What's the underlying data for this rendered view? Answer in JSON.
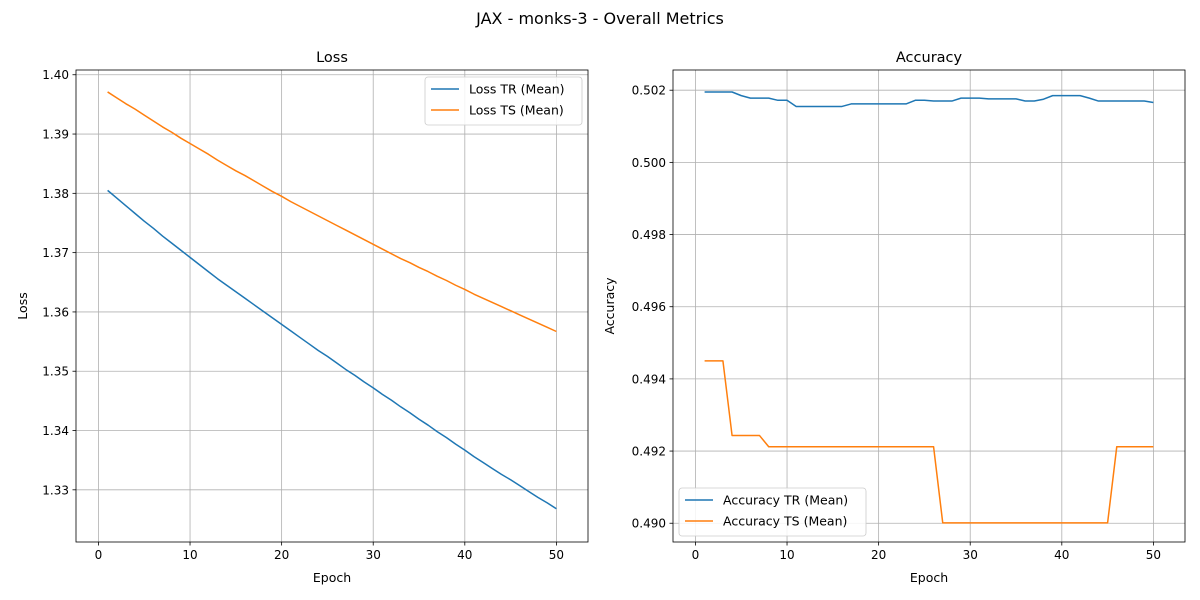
{
  "figure": {
    "suptitle": "JAX - monks-3 - Overall Metrics"
  },
  "colors": {
    "tr": "#1f77b4",
    "ts": "#ff7f0e",
    "grid": "#b0b0b0"
  },
  "chart_data": [
    {
      "type": "line",
      "title": "Loss",
      "xlabel": "Epoch",
      "ylabel": "Loss",
      "xlim": [
        -2.45,
        53.45
      ],
      "ylim": [
        1.3212,
        1.4008
      ],
      "xticks": [
        0,
        10,
        20,
        30,
        40,
        50
      ],
      "yticks": [
        1.33,
        1.34,
        1.35,
        1.36,
        1.37,
        1.38,
        1.39,
        1.4
      ],
      "ytick_labels": [
        "1.33",
        "1.34",
        "1.35",
        "1.36",
        "1.37",
        "1.38",
        "1.39",
        "1.40"
      ],
      "grid": true,
      "legend": "top-right",
      "series": [
        {
          "name": "Loss TR (Mean)",
          "color": "#1f77b4",
          "x": [
            1,
            2,
            3,
            4,
            5,
            6,
            7,
            8,
            9,
            10,
            11,
            12,
            13,
            14,
            15,
            16,
            17,
            18,
            19,
            20,
            21,
            22,
            23,
            24,
            25,
            26,
            27,
            28,
            29,
            30,
            31,
            32,
            33,
            34,
            35,
            36,
            37,
            38,
            39,
            40,
            41,
            42,
            43,
            44,
            45,
            46,
            47,
            48,
            49,
            50
          ],
          "y": [
            1.3805,
            1.3792,
            1.3779,
            1.3766,
            1.3753,
            1.3741,
            1.3728,
            1.3716,
            1.3704,
            1.3692,
            1.368,
            1.3668,
            1.3656,
            1.3645,
            1.3634,
            1.3623,
            1.3612,
            1.3601,
            1.359,
            1.3579,
            1.3568,
            1.3557,
            1.3546,
            1.3535,
            1.3525,
            1.3514,
            1.3503,
            1.3493,
            1.3482,
            1.3472,
            1.3461,
            1.3451,
            1.344,
            1.343,
            1.3419,
            1.3409,
            1.3398,
            1.3388,
            1.3377,
            1.3367,
            1.3356,
            1.3346,
            1.3336,
            1.3326,
            1.3317,
            1.3307,
            1.3297,
            1.3287,
            1.3278,
            1.3268
          ]
        },
        {
          "name": "Loss TS (Mean)",
          "color": "#ff7f0e",
          "x": [
            1,
            2,
            3,
            4,
            5,
            6,
            7,
            8,
            9,
            10,
            11,
            12,
            13,
            14,
            15,
            16,
            17,
            18,
            19,
            20,
            21,
            22,
            23,
            24,
            25,
            26,
            27,
            28,
            29,
            30,
            31,
            32,
            33,
            34,
            35,
            36,
            37,
            38,
            39,
            40,
            41,
            42,
            43,
            44,
            45,
            46,
            47,
            48,
            49,
            50
          ],
          "y": [
            1.3971,
            1.3961,
            1.3951,
            1.3942,
            1.3932,
            1.3922,
            1.3912,
            1.3903,
            1.3893,
            1.3884,
            1.3875,
            1.3866,
            1.3856,
            1.3847,
            1.3838,
            1.383,
            1.3821,
            1.3812,
            1.3803,
            1.3795,
            1.3786,
            1.3778,
            1.377,
            1.3762,
            1.3754,
            1.3746,
            1.3738,
            1.373,
            1.3722,
            1.3714,
            1.3706,
            1.3698,
            1.369,
            1.3683,
            1.3675,
            1.3668,
            1.366,
            1.3653,
            1.3645,
            1.3638,
            1.363,
            1.3623,
            1.3616,
            1.3609,
            1.3602,
            1.3595,
            1.3588,
            1.3581,
            1.3574,
            1.3567
          ]
        }
      ]
    },
    {
      "type": "line",
      "title": "Accuracy",
      "xlabel": "Epoch",
      "ylabel": "Accuracy",
      "xlim": [
        -2.45,
        53.45
      ],
      "ylim": [
        0.48948,
        0.50256
      ],
      "xticks": [
        0,
        10,
        20,
        30,
        40,
        50
      ],
      "yticks": [
        0.49,
        0.492,
        0.494,
        0.496,
        0.498,
        0.5,
        0.502
      ],
      "ytick_labels": [
        "0.490",
        "0.492",
        "0.494",
        "0.496",
        "0.498",
        "0.500",
        "0.502"
      ],
      "grid": true,
      "legend": "bottom-left",
      "series": [
        {
          "name": "Accuracy TR (Mean)",
          "color": "#1f77b4",
          "x": [
            1,
            2,
            3,
            4,
            5,
            6,
            7,
            8,
            9,
            10,
            11,
            12,
            13,
            14,
            15,
            16,
            17,
            18,
            19,
            20,
            21,
            22,
            23,
            24,
            25,
            26,
            27,
            28,
            29,
            30,
            31,
            32,
            33,
            34,
            35,
            36,
            37,
            38,
            39,
            40,
            41,
            42,
            43,
            44,
            45,
            46,
            47,
            48,
            49,
            50
          ],
          "y": [
            0.50195,
            0.50195,
            0.50195,
            0.50195,
            0.50185,
            0.50178,
            0.50178,
            0.50178,
            0.50172,
            0.50172,
            0.50155,
            0.50155,
            0.50155,
            0.50155,
            0.50155,
            0.50155,
            0.50162,
            0.50162,
            0.50162,
            0.50162,
            0.50162,
            0.50162,
            0.50162,
            0.50172,
            0.50172,
            0.5017,
            0.5017,
            0.5017,
            0.50178,
            0.50178,
            0.50178,
            0.50176,
            0.50176,
            0.50176,
            0.50176,
            0.5017,
            0.5017,
            0.50175,
            0.50185,
            0.50185,
            0.50185,
            0.50185,
            0.50178,
            0.5017,
            0.5017,
            0.5017,
            0.5017,
            0.5017,
            0.5017,
            0.50166
          ]
        },
        {
          "name": "Accuracy TS (Mean)",
          "color": "#ff7f0e",
          "x": [
            1,
            2,
            3,
            4,
            5,
            6,
            7,
            8,
            9,
            10,
            11,
            12,
            13,
            14,
            15,
            16,
            17,
            18,
            19,
            20,
            21,
            22,
            23,
            24,
            25,
            26,
            27,
            28,
            29,
            30,
            31,
            32,
            33,
            34,
            35,
            36,
            37,
            38,
            39,
            40,
            41,
            42,
            43,
            44,
            45,
            46,
            47,
            48,
            49,
            50
          ],
          "y": [
            0.4945,
            0.4945,
            0.4945,
            0.49243,
            0.49243,
            0.49243,
            0.49243,
            0.49212,
            0.49212,
            0.49212,
            0.49212,
            0.49212,
            0.49212,
            0.49212,
            0.49212,
            0.49212,
            0.49212,
            0.49212,
            0.49212,
            0.49212,
            0.49212,
            0.49212,
            0.49212,
            0.49212,
            0.49212,
            0.49212,
            0.49001,
            0.49001,
            0.49001,
            0.49001,
            0.49001,
            0.49001,
            0.49001,
            0.49001,
            0.49001,
            0.49001,
            0.49001,
            0.49001,
            0.49001,
            0.49001,
            0.49001,
            0.49001,
            0.49001,
            0.49001,
            0.49001,
            0.49212,
            0.49212,
            0.49212,
            0.49212,
            0.49212
          ]
        }
      ]
    }
  ]
}
